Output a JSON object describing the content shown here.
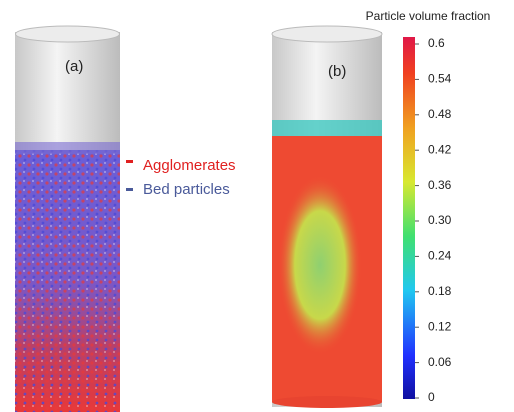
{
  "panels": [
    {
      "label": "(a)"
    },
    {
      "label": "(b)"
    }
  ],
  "legend": [
    {
      "label": "Agglomerates",
      "color": "#e02020"
    },
    {
      "label": "Bed particles",
      "color": "#4a5a9a"
    }
  ],
  "colorbar": {
    "title": "Particle volume fraction",
    "ticks": [
      0.6,
      0.54,
      0.48,
      0.42,
      0.36,
      {
        "value": 0.3,
        "label": "0.30"
      },
      0.24,
      0.18,
      0.12,
      0.06,
      0
    ]
  }
}
